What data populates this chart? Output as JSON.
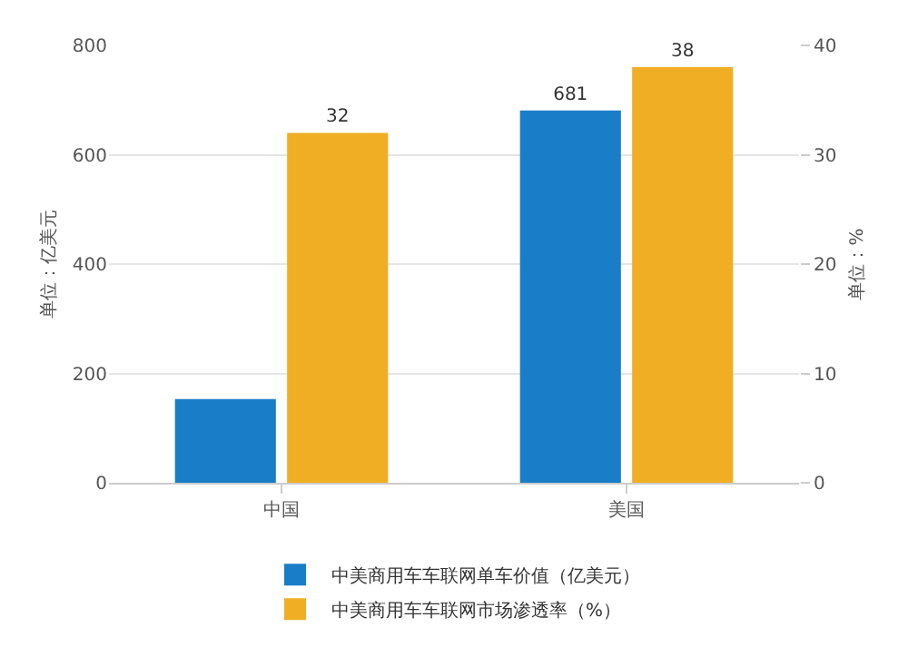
{
  "chart_data": {
    "type": "bar",
    "categories": [
      "中国",
      "美国"
    ],
    "series": [
      {
        "name": "中美商用车车联网单车价值（亿美元）",
        "color": "#1a7dc8",
        "values": [
          153,
          681
        ],
        "value_labels": [
          null,
          "681"
        ]
      },
      {
        "name": "中美商用车车联网市场渗透率（%）",
        "color": "#f0ae24",
        "values": [
          32,
          38
        ],
        "axis": "y2",
        "value_labels": [
          "32",
          "38"
        ]
      }
    ],
    "ylabel": "单位：亿美元",
    "y2label": "单位：%",
    "ylim": [
      0,
      800
    ],
    "yticks": [
      0,
      200,
      400,
      600,
      800
    ],
    "y2lim": [
      0,
      40
    ],
    "y2ticks": [
      0,
      10,
      20,
      30,
      40
    ],
    "grid": "y",
    "legend": "bottom"
  }
}
